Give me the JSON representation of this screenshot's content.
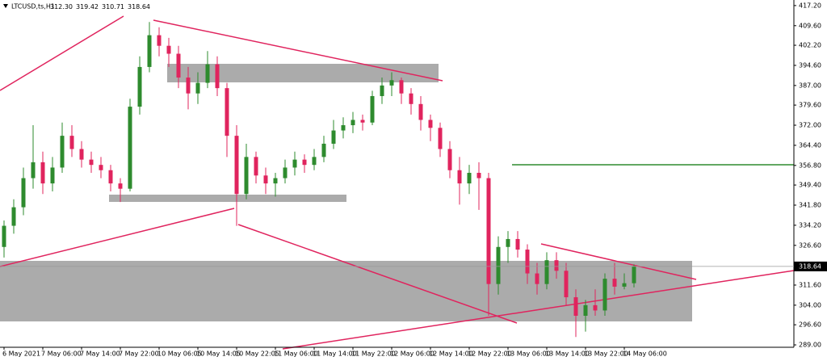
{
  "chart_data": {
    "type": "candlestick",
    "title": "LTCUSD,ts,H1",
    "header_values": [
      "312.30",
      "319.42",
      "310.71",
      "318.64"
    ],
    "categories": [
      "6 May 2021",
      null,
      null,
      null,
      "7 May 06:00",
      null,
      null,
      null,
      "7 May 14:00",
      null,
      null,
      null,
      "7 May 22:00",
      null,
      null,
      null,
      "10 May 06:05",
      null,
      null,
      null,
      "10 May 14:05",
      null,
      null,
      null,
      "10 May 22:05",
      null,
      null,
      null,
      "11 May 06:00",
      null,
      null,
      null,
      "11 May 14:00",
      null,
      null,
      null,
      "11 May 22:00",
      null,
      null,
      null,
      "12 May 06:00",
      null,
      null,
      null,
      "12 May 14:00",
      null,
      null,
      null,
      "12 May 22:00",
      null,
      null,
      null,
      "13 May 06:00",
      null,
      null,
      null,
      "13 May 14:00",
      null,
      null,
      null,
      "13 May 22:00",
      null,
      null,
      null,
      "14 May 06:00",
      null
    ],
    "open": [
      326,
      334,
      341,
      352,
      358,
      350,
      356,
      368,
      363,
      359,
      357,
      355,
      350,
      348,
      379,
      394,
      406,
      402,
      399,
      390,
      384,
      388,
      395,
      386,
      368,
      346,
      360,
      353,
      350,
      352,
      356,
      359,
      357,
      360,
      365,
      370,
      372,
      374,
      373,
      383,
      387,
      389,
      384,
      380,
      374,
      371,
      363,
      355,
      350,
      354,
      352,
      312,
      326,
      329,
      325,
      316,
      312,
      321,
      317,
      307,
      300,
      304,
      302,
      314,
      311,
      312.3
    ],
    "high": [
      336,
      344,
      356,
      372,
      362,
      360,
      373,
      372,
      366,
      362,
      360,
      357,
      352,
      382,
      398,
      411,
      409,
      405,
      402,
      394,
      392,
      400,
      398,
      388,
      372,
      365,
      362,
      356,
      354,
      359,
      362,
      361,
      363,
      368,
      374,
      375,
      377,
      376,
      385,
      390,
      392,
      390,
      386,
      383,
      376,
      373,
      366,
      360,
      357,
      358,
      354,
      330,
      332,
      332,
      327,
      320,
      324,
      324,
      320,
      310,
      306,
      310,
      316,
      320,
      316,
      319.42
    ],
    "low": [
      322,
      331,
      338,
      348,
      346,
      347,
      354,
      360,
      356,
      354,
      352,
      347,
      343,
      347,
      376,
      392,
      398,
      394,
      386,
      378,
      380,
      386,
      383,
      360,
      334,
      344,
      350,
      346,
      345,
      350,
      353,
      354,
      355,
      358,
      363,
      367,
      369,
      370,
      372,
      380,
      383,
      380,
      376,
      370,
      366,
      360,
      352,
      342,
      346,
      340,
      300,
      308,
      320,
      322,
      312,
      308,
      310,
      314,
      304,
      292,
      294,
      300,
      300,
      308,
      310,
      310.71
    ],
    "close": [
      334,
      341,
      352,
      358,
      350,
      356,
      368,
      363,
      359,
      357,
      355,
      350,
      348,
      379,
      394,
      406,
      402,
      399,
      390,
      384,
      388,
      395,
      386,
      368,
      346,
      360,
      353,
      350,
      352,
      356,
      359,
      357,
      360,
      365,
      370,
      372,
      374,
      373,
      383,
      387,
      389,
      384,
      380,
      374,
      371,
      363,
      355,
      350,
      354,
      352,
      312,
      326,
      329,
      325,
      316,
      312,
      321,
      317,
      307,
      300,
      304,
      302,
      314,
      311,
      312.3,
      318.64
    ],
    "up_color": "#2e8b2e",
    "down_color": "#e0245e",
    "ylim": [
      288.1,
      419.3
    ],
    "yticks": [
      {
        "value": 417.2,
        "label": "417.20"
      },
      {
        "value": 409.6,
        "label": "409.60"
      },
      {
        "value": 402.2,
        "label": "402.20"
      },
      {
        "value": 394.6,
        "label": "394.60"
      },
      {
        "value": 387,
        "label": "387.00"
      },
      {
        "value": 379.6,
        "label": "379.60"
      },
      {
        "value": 372,
        "label": "372.00"
      },
      {
        "value": 364.4,
        "label": "364.40"
      },
      {
        "value": 356.8,
        "label": "356.80"
      },
      {
        "value": 349.4,
        "label": "349.40"
      },
      {
        "value": 341.8,
        "label": "341.80"
      },
      {
        "value": 334.2,
        "label": "334.20"
      },
      {
        "value": 326.6,
        "label": "326.60"
      },
      {
        "value": 311.6,
        "label": "311.60"
      },
      {
        "value": 304,
        "label": "304.00"
      },
      {
        "value": 296.6,
        "label": "296.60"
      },
      {
        "value": 289,
        "label": "289.00"
      }
    ],
    "current_price": {
      "value": 318.64,
      "label": "318.64"
    }
  }
}
